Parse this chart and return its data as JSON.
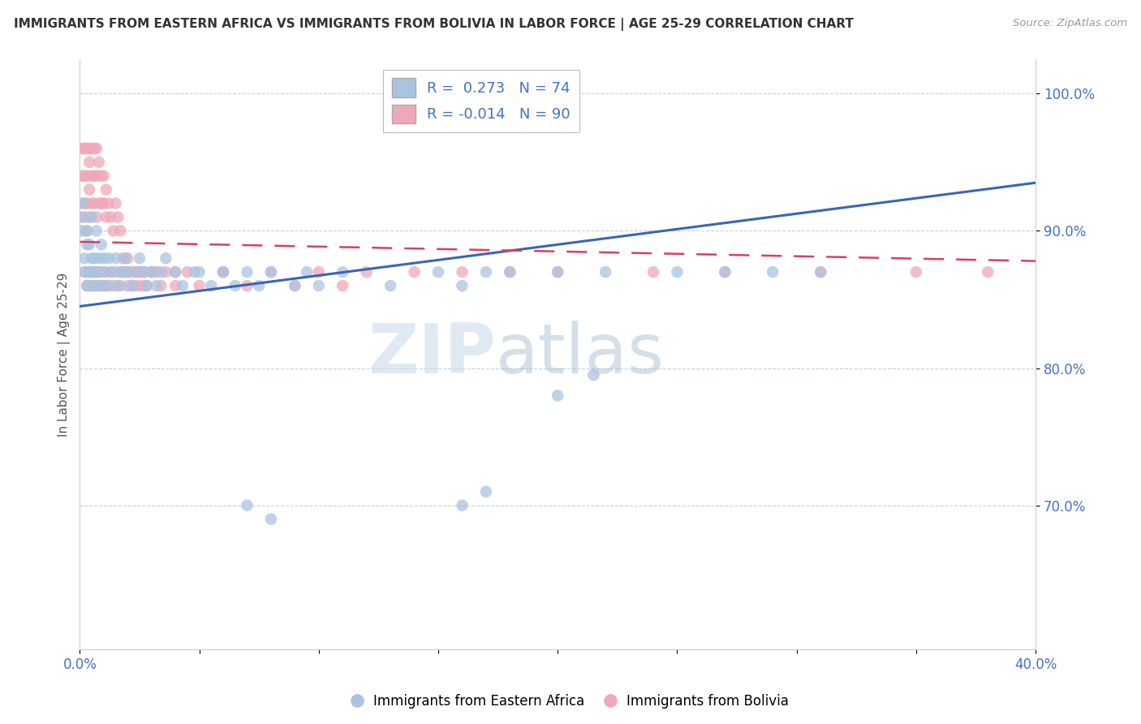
{
  "title": "IMMIGRANTS FROM EASTERN AFRICA VS IMMIGRANTS FROM BOLIVIA IN LABOR FORCE | AGE 25-29 CORRELATION CHART",
  "source": "Source: ZipAtlas.com",
  "ylabel": "In Labor Force | Age 25-29",
  "xlim": [
    0.0,
    0.4
  ],
  "ylim": [
    0.595,
    1.025
  ],
  "yticks": [
    0.7,
    0.8,
    0.9,
    1.0
  ],
  "ytick_labels": [
    "70.0%",
    "80.0%",
    "90.0%",
    "100.0%"
  ],
  "xticks": [
    0.0,
    0.05,
    0.1,
    0.15,
    0.2,
    0.25,
    0.3,
    0.35,
    0.4
  ],
  "xtick_labels": [
    "0.0%",
    "",
    "",
    "",
    "",
    "",
    "",
    "",
    "40.0%"
  ],
  "blue_color": "#aac4e0",
  "pink_color": "#f0a8b8",
  "blue_line_color": "#3a65b5",
  "pink_line_color": "#d84060",
  "watermark_big": "ZIP",
  "watermark_small": "atlas",
  "R_blue": 0.273,
  "N_blue": 74,
  "R_pink": -0.014,
  "N_pink": 90,
  "legend_blue_label": "R =  0.273   N = 74",
  "legend_pink_label": "R = -0.014   N = 90",
  "blue_line_x0": 0.0,
  "blue_line_y0": 0.845,
  "blue_line_x1": 0.4,
  "blue_line_y1": 0.935,
  "pink_line_x0": 0.0,
  "pink_line_y0": 0.892,
  "pink_line_x1": 0.4,
  "pink_line_y1": 0.878,
  "blue_scatter_x": [
    0.001,
    0.001,
    0.002,
    0.002,
    0.002,
    0.003,
    0.003,
    0.003,
    0.004,
    0.004,
    0.004,
    0.005,
    0.005,
    0.005,
    0.006,
    0.006,
    0.007,
    0.007,
    0.008,
    0.008,
    0.008,
    0.009,
    0.01,
    0.01,
    0.011,
    0.012,
    0.013,
    0.014,
    0.015,
    0.016,
    0.017,
    0.018,
    0.019,
    0.02,
    0.022,
    0.024,
    0.025,
    0.027,
    0.028,
    0.03,
    0.032,
    0.034,
    0.036,
    0.04,
    0.043,
    0.048,
    0.05,
    0.055,
    0.06,
    0.065,
    0.07,
    0.075,
    0.08,
    0.09,
    0.095,
    0.1,
    0.11,
    0.13,
    0.15,
    0.16,
    0.17,
    0.18,
    0.2,
    0.22,
    0.25,
    0.27,
    0.29,
    0.31,
    0.2,
    0.215,
    0.07,
    0.08,
    0.16,
    0.17
  ],
  "blue_scatter_y": [
    0.9,
    0.92,
    0.88,
    0.91,
    0.87,
    0.89,
    0.86,
    0.9,
    0.87,
    0.89,
    0.86,
    0.88,
    0.87,
    0.91,
    0.88,
    0.86,
    0.87,
    0.9,
    0.88,
    0.86,
    0.87,
    0.89,
    0.88,
    0.86,
    0.87,
    0.88,
    0.87,
    0.86,
    0.88,
    0.87,
    0.86,
    0.87,
    0.88,
    0.87,
    0.86,
    0.87,
    0.88,
    0.87,
    0.86,
    0.87,
    0.86,
    0.87,
    0.88,
    0.87,
    0.86,
    0.87,
    0.87,
    0.86,
    0.87,
    0.86,
    0.87,
    0.86,
    0.87,
    0.86,
    0.87,
    0.86,
    0.87,
    0.86,
    0.87,
    0.86,
    0.87,
    0.87,
    0.87,
    0.87,
    0.87,
    0.87,
    0.87,
    0.87,
    0.78,
    0.795,
    0.7,
    0.69,
    0.7,
    0.71
  ],
  "pink_scatter_x": [
    0.001,
    0.001,
    0.001,
    0.002,
    0.002,
    0.002,
    0.003,
    0.003,
    0.003,
    0.003,
    0.004,
    0.004,
    0.004,
    0.004,
    0.005,
    0.005,
    0.005,
    0.006,
    0.006,
    0.006,
    0.007,
    0.007,
    0.007,
    0.008,
    0.008,
    0.009,
    0.009,
    0.01,
    0.01,
    0.011,
    0.011,
    0.012,
    0.013,
    0.014,
    0.015,
    0.016,
    0.017,
    0.018,
    0.019,
    0.02,
    0.021,
    0.022,
    0.023,
    0.024,
    0.025,
    0.026,
    0.027,
    0.028,
    0.03,
    0.032,
    0.034,
    0.036,
    0.04,
    0.045,
    0.05,
    0.06,
    0.07,
    0.08,
    0.09,
    0.1,
    0.11,
    0.12,
    0.14,
    0.16,
    0.18,
    0.2,
    0.24,
    0.27,
    0.31,
    0.35,
    0.38,
    0.002,
    0.003,
    0.004,
    0.005,
    0.006,
    0.007,
    0.008,
    0.009,
    0.01,
    0.011,
    0.012,
    0.014,
    0.016,
    0.018,
    0.02,
    0.025,
    0.03,
    0.04,
    0.06
  ],
  "pink_scatter_y": [
    0.96,
    0.94,
    0.91,
    0.96,
    0.94,
    0.92,
    0.96,
    0.94,
    0.92,
    0.9,
    0.96,
    0.95,
    0.93,
    0.91,
    0.96,
    0.94,
    0.92,
    0.96,
    0.94,
    0.92,
    0.96,
    0.94,
    0.91,
    0.95,
    0.92,
    0.94,
    0.92,
    0.94,
    0.92,
    0.93,
    0.91,
    0.92,
    0.91,
    0.9,
    0.92,
    0.91,
    0.9,
    0.88,
    0.87,
    0.88,
    0.87,
    0.86,
    0.87,
    0.86,
    0.87,
    0.86,
    0.87,
    0.86,
    0.87,
    0.87,
    0.86,
    0.87,
    0.86,
    0.87,
    0.86,
    0.87,
    0.86,
    0.87,
    0.86,
    0.87,
    0.86,
    0.87,
    0.87,
    0.87,
    0.87,
    0.87,
    0.87,
    0.87,
    0.87,
    0.87,
    0.87,
    0.87,
    0.86,
    0.87,
    0.86,
    0.87,
    0.86,
    0.87,
    0.86,
    0.87,
    0.86,
    0.86,
    0.87,
    0.86,
    0.87,
    0.86,
    0.87,
    0.87,
    0.87,
    0.87
  ]
}
